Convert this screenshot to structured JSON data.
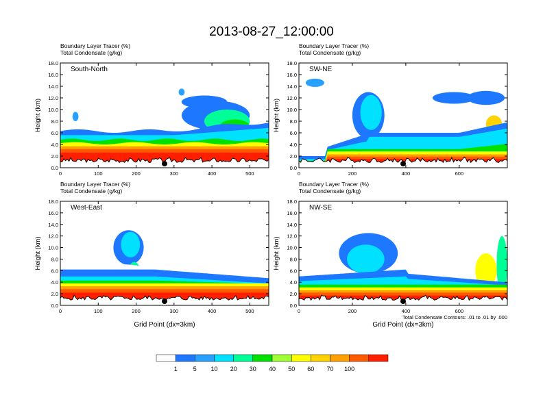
{
  "title": "2013-08-27_12:00:00",
  "colors": {
    "levels": [
      "#ffffff",
      "#1e78ff",
      "#27a0ff",
      "#00e1ff",
      "#00ff96",
      "#00e100",
      "#a0ff32",
      "#ffff00",
      "#ffd200",
      "#ffa000",
      "#ff5a00",
      "#ff1e00"
    ],
    "terrain": "#000000"
  },
  "chart_data": [
    {
      "type": "heatmap",
      "panel_label": "South-North",
      "subtitle1": "Boundary Layer Tracer   (%)",
      "subtitle2": "Total Condensate   (g/kg)",
      "ylabel": "Height (km)",
      "xlabel": "",
      "x_ticks": [
        "0",
        "100",
        "200",
        "300",
        "400",
        "500"
      ],
      "x_tick_values": [
        0,
        100,
        200,
        300,
        400,
        500
      ],
      "xlim": [
        0,
        550
      ],
      "y_ticks": [
        "0.0",
        "2.0",
        "4.0",
        "6.0",
        "8.0",
        "10.0",
        "12.0",
        "14.0",
        "16.0",
        "18.0"
      ],
      "ylim": [
        0,
        18
      ],
      "marker_x": 275,
      "note": ""
    },
    {
      "type": "heatmap",
      "panel_label": "SW-NE",
      "subtitle1": "Boundary Layer Tracer   (%)",
      "subtitle2": "Total Condensate   (g/kg)",
      "ylabel": "Height (km)",
      "xlabel": "",
      "x_ticks": [
        "0",
        "200",
        "400",
        "600"
      ],
      "x_tick_values": [
        0,
        200,
        400,
        600
      ],
      "xlim": [
        0,
        780
      ],
      "y_ticks": [
        "0.0",
        "2.0",
        "4.0",
        "6.0",
        "8.0",
        "10.0",
        "12.0",
        "14.0",
        "16.0",
        "18.0"
      ],
      "ylim": [
        0,
        18
      ],
      "marker_x": 390,
      "note": ""
    },
    {
      "type": "heatmap",
      "panel_label": "West-East",
      "subtitle1": "Boundary Layer Tracer   (%)",
      "subtitle2": "Total Condensate   (g/kg)",
      "ylabel": "Height (km)",
      "xlabel": "Grid Point (dx=3km)",
      "x_ticks": [
        "0",
        "100",
        "200",
        "300",
        "400",
        "500"
      ],
      "x_tick_values": [
        0,
        100,
        200,
        300,
        400,
        500
      ],
      "xlim": [
        0,
        550
      ],
      "y_ticks": [
        "0.0",
        "2.0",
        "4.0",
        "6.0",
        "8.0",
        "10.0",
        "12.0",
        "14.0",
        "16.0",
        "18.0"
      ],
      "ylim": [
        0,
        18
      ],
      "marker_x": 275,
      "note": ""
    },
    {
      "type": "heatmap",
      "panel_label": "NW-SE",
      "subtitle1": "Boundary Layer Tracer   (%)",
      "subtitle2": "Total Condensate   (g/kg)",
      "ylabel": "Height (km)",
      "xlabel": "Grid Point (dx=3km)",
      "x_ticks": [
        "0",
        "200",
        "400",
        "600"
      ],
      "x_tick_values": [
        0,
        200,
        400,
        600
      ],
      "xlim": [
        0,
        780
      ],
      "y_ticks": [
        "0.0",
        "2.0",
        "4.0",
        "6.0",
        "8.0",
        "10.0",
        "12.0",
        "14.0",
        "16.0",
        "18.0"
      ],
      "ylim": [
        0,
        18
      ],
      "marker_x": 390,
      "note": "Total Condensate Contours: .01 to .01 by .000"
    }
  ],
  "legend": {
    "labels": [
      "1",
      "5",
      "10",
      "20",
      "30",
      "40",
      "50",
      "60",
      "70",
      "100"
    ]
  }
}
